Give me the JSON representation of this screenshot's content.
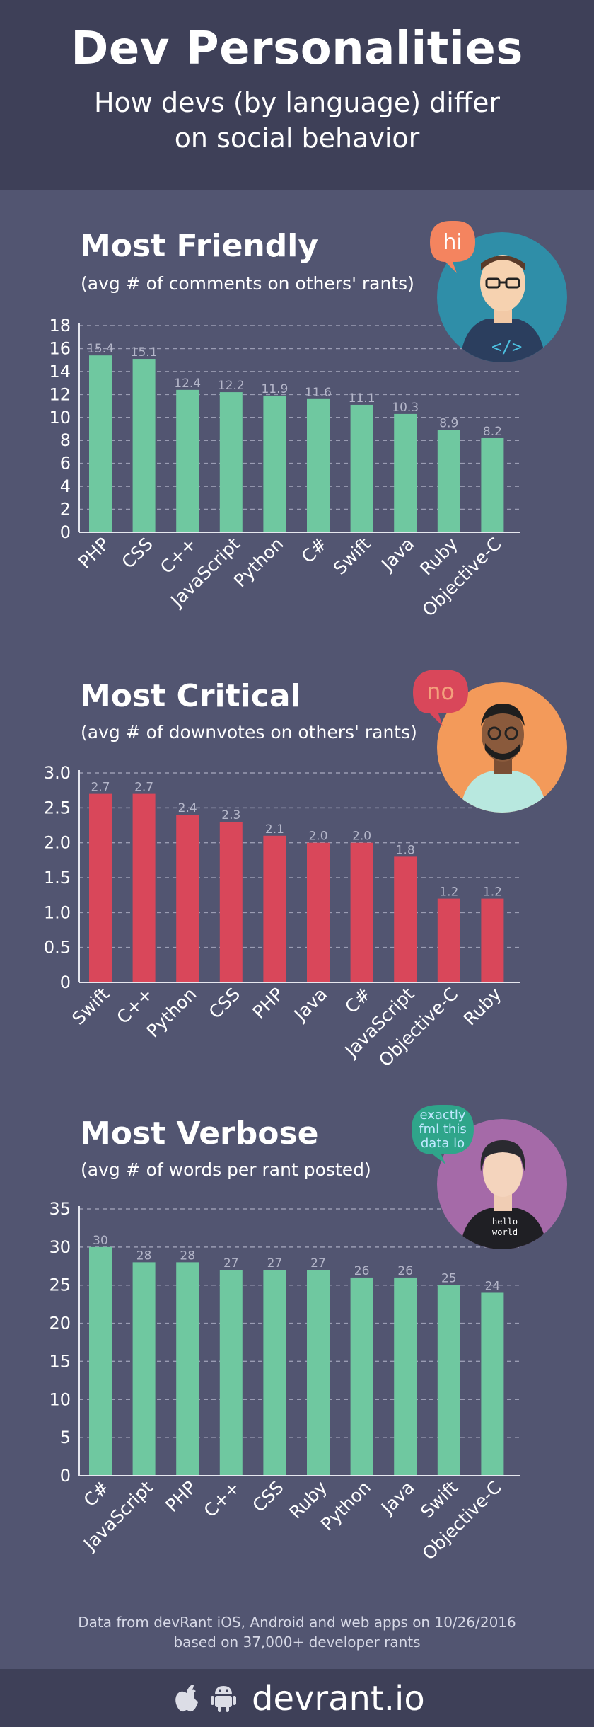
{
  "header": {
    "title": "Dev Personalities",
    "subtitle_line1": "How devs (by language) differ",
    "subtitle_line2": "on social behavior"
  },
  "sections": [
    {
      "title": "Most Friendly",
      "subtitle": "(avg # of comments on others' rants)",
      "speech": "hi"
    },
    {
      "title": "Most Critical",
      "subtitle": "(avg # of downvotes on others' rants)",
      "speech": "no"
    },
    {
      "title": "Most Verbose",
      "subtitle": "(avg # of words per rant posted)",
      "speech_lines": [
        "exactly",
        "fml this",
        "data lo"
      ],
      "shirt_lines": [
        "hello",
        "world"
      ]
    }
  ],
  "chart_data": [
    {
      "type": "bar",
      "title": "Most Friendly",
      "subtitle": "(avg # of comments on others' rants)",
      "categories": [
        "PHP",
        "CSS",
        "C++",
        "JavaScript",
        "Python",
        "C#",
        "Swift",
        "Java",
        "Ruby",
        "Objective-C"
      ],
      "values": [
        15.4,
        15.1,
        12.4,
        12.2,
        11.9,
        11.6,
        11.1,
        10.3,
        8.9,
        8.2
      ],
      "value_labels": [
        "15.4",
        "15.1",
        "12.4",
        "12.2",
        "11.9",
        "11.6",
        "11.1",
        "10.3",
        "8.9",
        "8.2"
      ],
      "ylim": [
        0,
        18
      ],
      "yticks": [
        "0",
        "2",
        "4",
        "6",
        "8",
        "10",
        "12",
        "14",
        "16",
        "18"
      ],
      "grid": true,
      "color": "#6fc8a0"
    },
    {
      "type": "bar",
      "title": "Most Critical",
      "subtitle": "(avg # of downvotes on others' rants)",
      "categories": [
        "Swift",
        "C++",
        "Python",
        "CSS",
        "PHP",
        "Java",
        "C#",
        "JavaScript",
        "Objective-C",
        "Ruby"
      ],
      "values": [
        2.7,
        2.7,
        2.4,
        2.3,
        2.1,
        2.0,
        2.0,
        1.8,
        1.2,
        1.2
      ],
      "value_labels": [
        "2.7",
        "2.7",
        "2.4",
        "2.3",
        "2.1",
        "2.0",
        "2.0",
        "1.8",
        "1.2",
        "1.2"
      ],
      "ylim": [
        0,
        3.0
      ],
      "yticks": [
        "0",
        "0.5",
        "1.0",
        "1.5",
        "2.0",
        "2.5",
        "3.0"
      ],
      "grid": true,
      "color": "#d9475a"
    },
    {
      "type": "bar",
      "title": "Most Verbose",
      "subtitle": "(avg # of words per rant posted)",
      "categories": [
        "C#",
        "JavaScript",
        "PHP",
        "C++",
        "CSS",
        "Ruby",
        "Python",
        "Java",
        "Swift",
        "Objective-C"
      ],
      "values": [
        30,
        28,
        28,
        27,
        27,
        27,
        26,
        26,
        25,
        24
      ],
      "value_labels": [
        "30",
        "28",
        "28",
        "27",
        "27",
        "27",
        "26",
        "26",
        "25",
        "24"
      ],
      "ylim": [
        0,
        35
      ],
      "yticks": [
        "0",
        "5",
        "10",
        "15",
        "20",
        "25",
        "30",
        "35"
      ],
      "grid": true,
      "color": "#6fc8a0"
    }
  ],
  "footer": {
    "note_line1": "Data from devRant iOS, Android and web apps on 10/26/2016",
    "note_line2": "based on 37,000+ developer rants",
    "brand": "devrant.io",
    "icons": [
      "apple-icon",
      "android-icon"
    ]
  }
}
